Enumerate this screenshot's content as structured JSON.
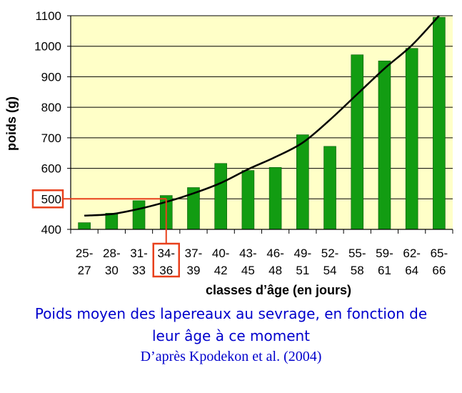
{
  "chart_data": {
    "type": "bar",
    "title": "",
    "xlabel": "classes d’âge (en jours)",
    "ylabel": "poids (g)",
    "ylim": [
      400,
      1100
    ],
    "yticks": [
      400,
      500,
      600,
      700,
      800,
      900,
      1000,
      1100
    ],
    "grid": true,
    "categories": [
      [
        "25-",
        "27"
      ],
      [
        "28-",
        "30"
      ],
      [
        "31-",
        "33"
      ],
      [
        "34-",
        "36"
      ],
      [
        "37-",
        "39"
      ],
      [
        "40-",
        "42"
      ],
      [
        "43-",
        "45"
      ],
      [
        "46-",
        "48"
      ],
      [
        "49-",
        "51"
      ],
      [
        "52-",
        "54"
      ],
      [
        "55-",
        "58"
      ],
      [
        "59-",
        "61"
      ],
      [
        "62-",
        "64"
      ],
      [
        "65-",
        "66"
      ]
    ],
    "values": [
      422,
      453,
      494,
      511,
      537,
      616,
      593,
      603,
      710,
      672,
      972,
      952,
      993,
      1095
    ],
    "trendline": [
      445,
      450,
      467,
      490,
      518,
      552,
      597,
      637,
      684,
      759,
      843,
      927,
      1003,
      1100
    ],
    "highlight": {
      "category_index": 3,
      "y_value": 500
    },
    "colors": {
      "plot_background": "#ffffc8",
      "bar_fill": "#129c12",
      "bar_edge": "#0a5a0a",
      "trendline": "#000000",
      "highlight": "#e8401c",
      "caption": "#0000cc"
    }
  },
  "caption": {
    "line1": "Poids moyen des lapereaux au sevrage, en fonction de",
    "line2": "leur âge à ce moment",
    "source": "D’après Kpodekon et al. (2004)"
  }
}
